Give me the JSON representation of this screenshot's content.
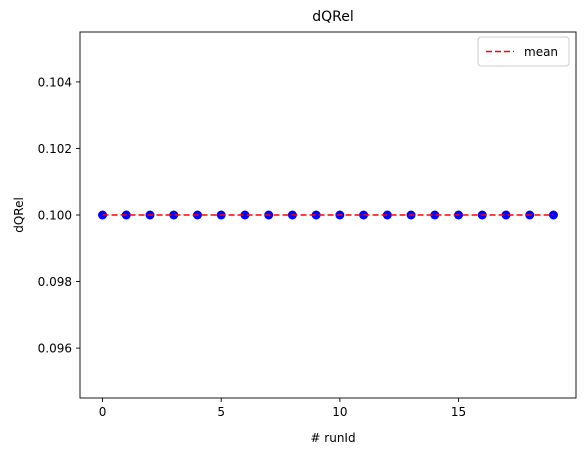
{
  "chart_data": {
    "type": "scatter",
    "title": "dQRel",
    "xlabel": "# runId",
    "ylabel": "dQRel",
    "xlim": [
      -0.95,
      19.95
    ],
    "ylim": [
      0.0945,
      0.1055
    ],
    "xticks": [
      0,
      5,
      10,
      15
    ],
    "xtick_labels": [
      "0",
      "5",
      "10",
      "15"
    ],
    "yticks": [
      0.096,
      0.098,
      0.1,
      0.102,
      0.104
    ],
    "ytick_labels": [
      "0.096",
      "0.098",
      "0.100",
      "0.102",
      "0.104"
    ],
    "grid": false,
    "legend_position": "upper right",
    "series": [
      {
        "kind": "points",
        "x": [
          0,
          1,
          2,
          3,
          4,
          5,
          6,
          7,
          8,
          9,
          10,
          11,
          12,
          13,
          14,
          15,
          16,
          17,
          18,
          19
        ],
        "y": [
          0.1,
          0.1,
          0.1,
          0.1,
          0.1,
          0.1,
          0.1,
          0.1,
          0.1,
          0.1,
          0.1,
          0.1,
          0.1,
          0.1,
          0.1,
          0.1,
          0.1,
          0.1,
          0.1,
          0.1
        ],
        "color": "#0000ff"
      },
      {
        "kind": "line",
        "name": "mean",
        "x": [
          0,
          19
        ],
        "y": [
          0.1,
          0.1
        ],
        "color": "#ff0000",
        "dash": "dashed"
      }
    ]
  }
}
